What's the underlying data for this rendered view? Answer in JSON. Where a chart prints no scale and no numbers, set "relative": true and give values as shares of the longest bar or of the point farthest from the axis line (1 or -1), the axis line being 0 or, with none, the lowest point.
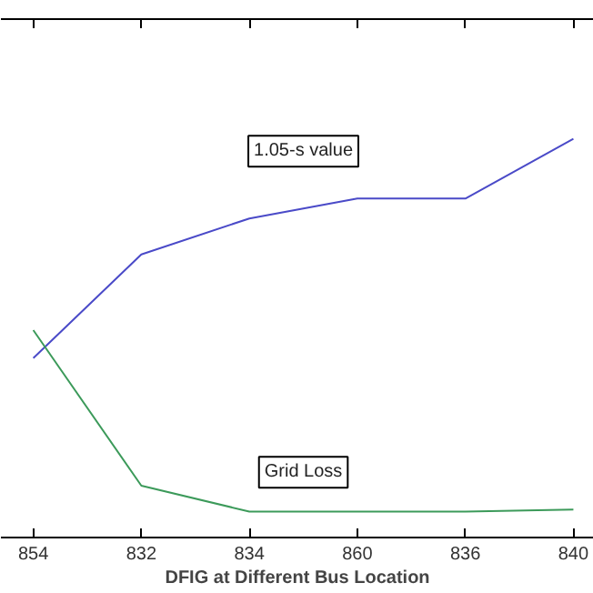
{
  "chart_data": {
    "type": "line",
    "relative": true,
    "xlabel": "DFIG at Different Bus Location",
    "categories": [
      "854",
      "832",
      "834",
      "860",
      "836",
      "840"
    ],
    "grid": false,
    "marker": "none",
    "line_style": "solid",
    "series": [
      {
        "name": "1.05-s value",
        "color": "#4a4ac8",
        "values": [
          0.45,
          0.71,
          0.8,
          0.85,
          0.85,
          1.0
        ]
      },
      {
        "name": "Grid Loss",
        "color": "#3c9a5a",
        "values": [
          0.52,
          0.13,
          0.065,
          0.065,
          0.065,
          0.07
        ]
      }
    ]
  }
}
